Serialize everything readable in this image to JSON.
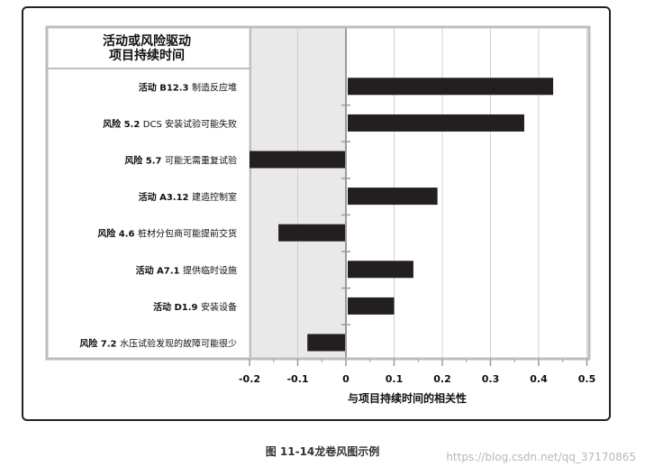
{
  "chart_data": {
    "type": "bar",
    "orientation": "horizontal",
    "title_lines": [
      "活动或风险驱动",
      "项目持续时间"
    ],
    "xlabel": "与项目持续时间的相关性",
    "xlim": [
      -0.2,
      0.5
    ],
    "xticks": [
      -0.2,
      -0.1,
      0,
      0.1,
      0.2,
      0.3,
      0.4,
      0.5
    ],
    "xtick_labels": [
      "-0.2",
      "-0.1",
      "0",
      "0.1",
      "0.2",
      "0.3",
      "0.4",
      "0.5"
    ],
    "categories": [
      {
        "prefix": "活动 B12.3",
        "text": "制造反应堆"
      },
      {
        "prefix": "风险 5.2",
        "text": "DCS 安装试验可能失败"
      },
      {
        "prefix": "风险 5.7",
        "text": "可能无需重复试验"
      },
      {
        "prefix": "活动 A3.12",
        "text": "建造控制室"
      },
      {
        "prefix": "风险 4.6",
        "text": "桩材分包商可能提前交货"
      },
      {
        "prefix": "活动 A7.1",
        "text": "提供临时设施"
      },
      {
        "prefix": "活动 D1.9",
        "text": "安装设备"
      },
      {
        "prefix": "风险 7.2",
        "text": "水压试验发现的故障可能很少"
      }
    ],
    "values": [
      0.43,
      0.37,
      -0.2,
      0.19,
      -0.14,
      0.14,
      0.1,
      -0.08
    ],
    "colors": {
      "bar": "#231f20",
      "negative_region": "#e9e9e9",
      "frame": "#bdbdbd"
    }
  },
  "caption": "图 11-14龙卷风图示例",
  "watermark": "https://blog.csdn.net/qq_37170865"
}
